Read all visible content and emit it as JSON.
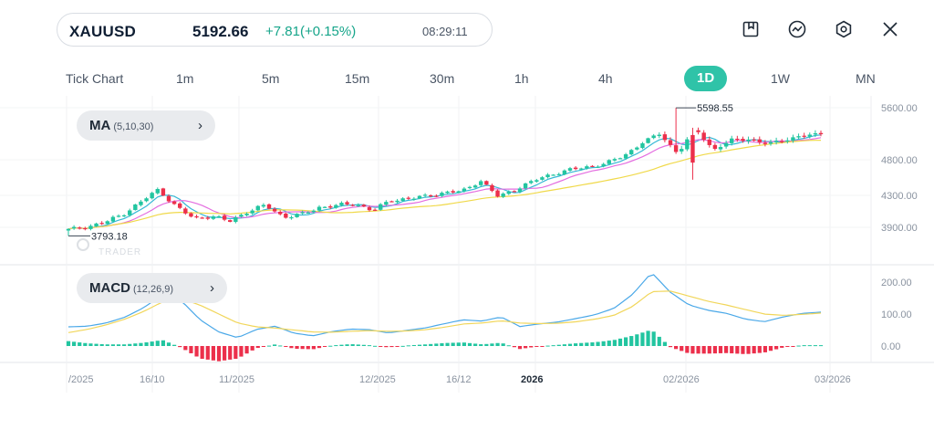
{
  "ticker": {
    "symbol": "XAUUSD",
    "price": "5192.66",
    "change": "+7.81(+0.15%)",
    "time": "08:29:11"
  },
  "toolbar_icons": [
    "bookmark-icon",
    "indicator-icon",
    "settings-icon",
    "close-icon"
  ],
  "timeframes": [
    "Tick Chart",
    "1m",
    "5m",
    "15m",
    "30m",
    "1h",
    "4h",
    "1D",
    "1W",
    "MN"
  ],
  "active_timeframe": "1D",
  "colors": {
    "up": "#22c5a0",
    "down": "#ec2f4b",
    "accent": "#2fc3a8",
    "ma5": "#36b8d6",
    "ma10": "#e46ee0",
    "ma30": "#f0d94a",
    "macd_line": "#4aa8e8",
    "signal_line": "#f1d65a"
  },
  "indicators": {
    "ma": {
      "name": "MA",
      "params": "(5,10,30)"
    },
    "macd": {
      "name": "MACD",
      "params": "(12,26,9)"
    }
  },
  "chart_data": {
    "type": "candlestick",
    "price_axis": {
      "ticks": [
        "5600.00",
        "4800.00",
        "4300.00",
        "3900.00"
      ],
      "values": [
        5600,
        4800,
        4300,
        3900
      ]
    },
    "macd_axis": {
      "ticks": [
        "200.00",
        "100.00",
        "0.00"
      ],
      "values": [
        200,
        100,
        0
      ]
    },
    "x_ticks": [
      "/2025",
      "16/10",
      "11/2025",
      "12/2025",
      "16/12",
      "2026",
      "02/2026",
      "03/2026"
    ],
    "annotations": {
      "high": "5598.55",
      "low": "3793.18"
    },
    "watermark": "TRADER",
    "close_anchors": [
      3870,
      3905,
      3960,
      4060,
      4210,
      4380,
      4160,
      4010,
      4040,
      3975,
      4100,
      4175,
      4030,
      4060,
      4150,
      4175,
      4195,
      4110,
      4240,
      4260,
      4290,
      4340,
      4360,
      4510,
      4280,
      4390,
      4510,
      4600,
      4660,
      4700,
      4750,
      4860,
      5060,
      5200,
      4900,
      5280,
      4950,
      5100,
      5120,
      5040,
      5110,
      5170,
      5192.66
    ],
    "macd_anchors": [
      60,
      62,
      72,
      90,
      120,
      160,
      142,
      82,
      44,
      26,
      52,
      62,
      40,
      32,
      45,
      53,
      51,
      41,
      49,
      57,
      70,
      82,
      78,
      91,
      61,
      69,
      75,
      86,
      98,
      118,
      162,
      230,
      168,
      128,
      112,
      102,
      84,
      76,
      91,
      102,
      106
    ],
    "signal_anchors": [
      42,
      52,
      66,
      84,
      108,
      138,
      148,
      128,
      100,
      72,
      60,
      56,
      50,
      44,
      43,
      46,
      48,
      46,
      47,
      51,
      59,
      69,
      72,
      79,
      72,
      70,
      71,
      76,
      84,
      96,
      124,
      170,
      172,
      156,
      140,
      128,
      114,
      100,
      96,
      99,
      103
    ]
  }
}
